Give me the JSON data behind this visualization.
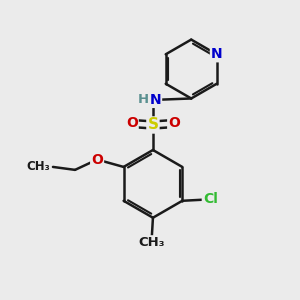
{
  "bg_color": "#ebebeb",
  "bond_color": "#1a1a1a",
  "bond_width": 1.8,
  "atom_colors": {
    "C": "#1a1a1a",
    "H": "#5a9090",
    "N": "#0000cc",
    "O": "#cc0000",
    "S": "#cccc00",
    "Cl": "#33bb33"
  },
  "font_size": 10,
  "font_size_small": 8.5
}
